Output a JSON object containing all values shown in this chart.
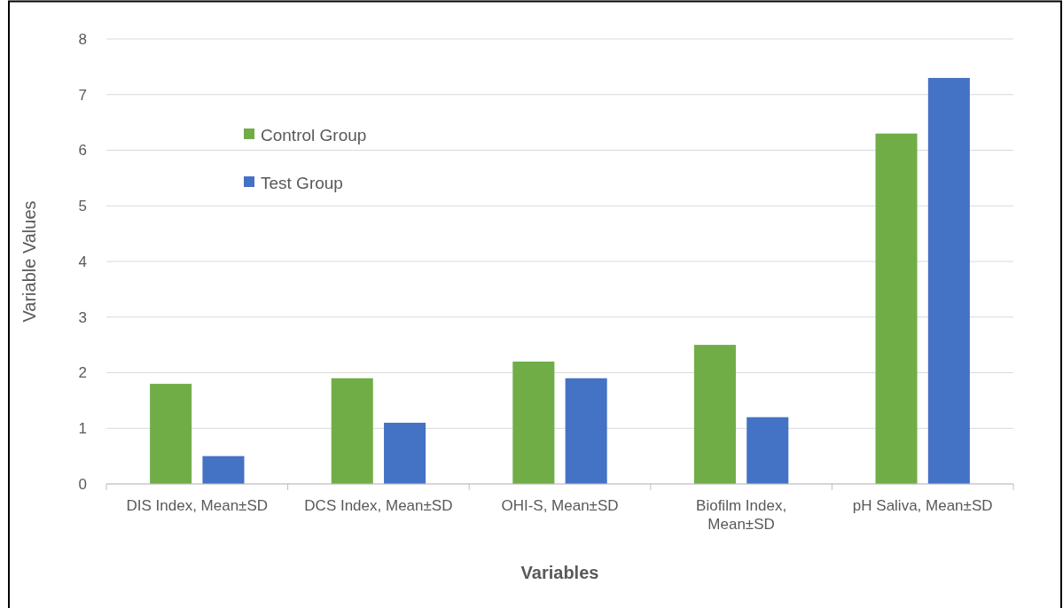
{
  "chart_data": {
    "type": "bar",
    "xlabel": "Variables",
    "ylabel": "Variable Values",
    "categories": [
      "DIS Index, Mean±SD",
      "DCS Index, Mean±SD",
      "OHI-S, Mean±SD",
      "Biofilm Index, Mean±SD",
      "pH Saliva, Mean±SD"
    ],
    "series": [
      {
        "name": "Control Group",
        "color": "#70ad47",
        "values": [
          1.8,
          1.9,
          2.2,
          2.5,
          6.3
        ]
      },
      {
        "name": "Test Group",
        "color": "#4472c4",
        "values": [
          0.5,
          1.1,
          1.9,
          1.2,
          7.3
        ]
      }
    ],
    "ylim": [
      0,
      8
    ],
    "yticks": [
      0,
      1,
      2,
      3,
      4,
      5,
      6,
      7,
      8
    ],
    "grid": "y",
    "legend": "top left"
  }
}
